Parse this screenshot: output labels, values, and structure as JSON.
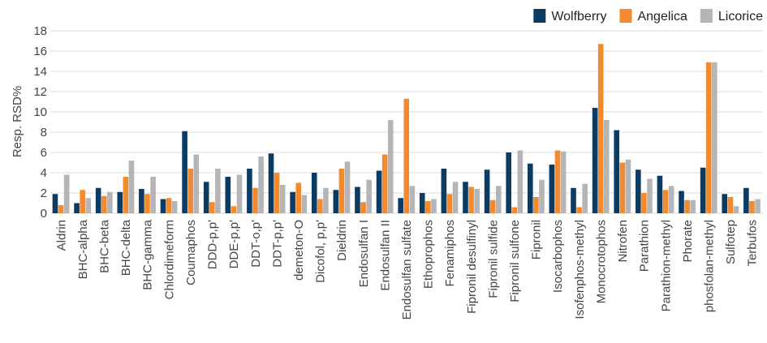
{
  "chart_data": {
    "type": "bar",
    "y_label": "Resp. RSD%",
    "categories": [
      "Aldrin",
      "BHC-alpha",
      "BHC-beta",
      "BHC-delta",
      "BHC-gamma",
      "Chlordimeform",
      "Coumaphos",
      "DDD-p,p'",
      "DDE-p,p'",
      "DDT-o,p'",
      "DDT-p,p'",
      "demeton-O",
      "Dicofol, p,p'",
      "Dieldrin",
      "Endosulfan I",
      "Endosulfan II",
      "Endosulfan sulfate",
      "Ethoprophos",
      "Fenamiphos",
      "Fipronil desulfinyl",
      "Fipronil sulfide",
      "Fipronil sulfone",
      "Fipronil",
      "Isocarbophos",
      "Isofenphos-methyl",
      "Monocrotophos",
      "Nitrofen",
      "Parathion",
      "Parathion-methyl",
      "Phorate",
      "phosfolan-methyl",
      "Sulfotep",
      "Terbufos"
    ],
    "series": [
      {
        "name": "Wolfberry",
        "color": "#0b3a63",
        "values": [
          1.9,
          1.0,
          2.5,
          2.1,
          2.4,
          1.4,
          8.1,
          3.1,
          3.6,
          4.4,
          5.9,
          2.1,
          4.0,
          2.3,
          2.6,
          4.2,
          1.5,
          2.0,
          4.4,
          3.1,
          4.3,
          6.0,
          4.9,
          4.8,
          2.5,
          10.4,
          8.2,
          4.3,
          3.7,
          2.2,
          4.5,
          1.9,
          2.5
        ]
      },
      {
        "name": "Angelica",
        "color": "#f28a30",
        "values": [
          0.8,
          2.3,
          1.7,
          3.6,
          1.9,
          1.5,
          4.4,
          1.1,
          0.7,
          2.5,
          4.0,
          3.0,
          1.4,
          4.4,
          1.1,
          5.8,
          11.3,
          1.2,
          1.9,
          2.6,
          1.3,
          0.6,
          1.6,
          6.2,
          0.6,
          16.7,
          5.0,
          2.0,
          2.3,
          1.3,
          14.9,
          1.6,
          1.2
        ]
      },
      {
        "name": "Licorice",
        "color": "#b5b5b8",
        "values": [
          3.8,
          1.5,
          2.1,
          5.2,
          3.6,
          1.2,
          5.8,
          4.4,
          3.8,
          5.6,
          2.8,
          1.8,
          2.5,
          5.1,
          3.3,
          9.2,
          2.7,
          1.4,
          3.1,
          2.4,
          2.7,
          6.2,
          3.3,
          6.1,
          2.9,
          9.2,
          5.3,
          3.4,
          2.7,
          1.3,
          14.9,
          0.7,
          1.4
        ]
      }
    ],
    "ylim": [
      0,
      18
    ],
    "yticks": [
      0,
      2,
      4,
      6,
      8,
      10,
      12,
      14,
      16,
      18
    ],
    "grid": true,
    "legend": "top-right"
  }
}
